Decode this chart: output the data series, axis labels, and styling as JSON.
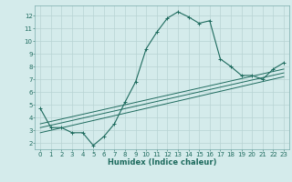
{
  "xlabel": "Humidex (Indice chaleur)",
  "background_color": "#d4ebeb",
  "grid_color": "#b8d4d4",
  "line_color": "#1e6b5e",
  "xlim": [
    -0.5,
    23.5
  ],
  "ylim": [
    1.5,
    12.8
  ],
  "yticks": [
    2,
    3,
    4,
    5,
    6,
    7,
    8,
    9,
    10,
    11,
    12
  ],
  "xticks": [
    0,
    1,
    2,
    3,
    4,
    5,
    6,
    7,
    8,
    9,
    10,
    11,
    12,
    13,
    14,
    15,
    16,
    17,
    18,
    19,
    20,
    21,
    22,
    23
  ],
  "series1_x": [
    0,
    1,
    2,
    3,
    4,
    5,
    6,
    7,
    8,
    9,
    10,
    11,
    12,
    13,
    14,
    15,
    16,
    17,
    18,
    19,
    20,
    21,
    22,
    23
  ],
  "series1_y": [
    4.7,
    3.2,
    3.2,
    2.8,
    2.8,
    1.8,
    2.5,
    3.5,
    5.2,
    6.8,
    9.4,
    10.7,
    11.8,
    12.3,
    11.9,
    11.4,
    11.6,
    8.6,
    8.0,
    7.3,
    7.3,
    7.0,
    7.8,
    8.3
  ],
  "series2_x": [
    0,
    23
  ],
  "series2_y": [
    3.2,
    7.5
  ],
  "series3_x": [
    0,
    23
  ],
  "series3_y": [
    3.5,
    7.8
  ],
  "series4_x": [
    0,
    23
  ],
  "series4_y": [
    2.8,
    7.2
  ],
  "tick_fontsize": 5.0,
  "xlabel_fontsize": 6.0
}
